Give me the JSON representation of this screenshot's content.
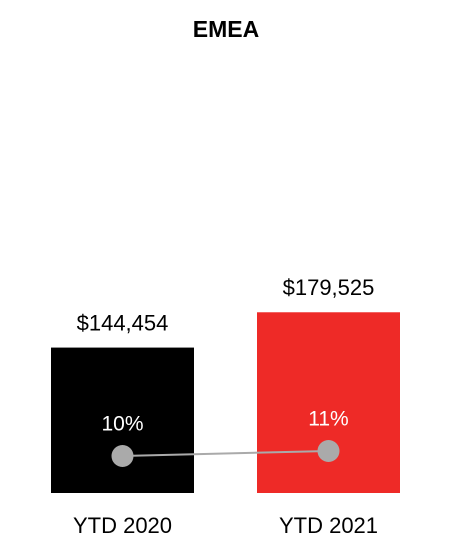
{
  "chart_data": {
    "type": "bar",
    "title": "EMEA",
    "categories": [
      "YTD 2020",
      "YTD 2021"
    ],
    "ylim": [
      0,
      450000
    ],
    "y2lim": [
      2.6,
      93.2
    ],
    "series": [
      {
        "type": "bar",
        "colors": [
          "#000000",
          "#ee2a27"
        ],
        "values": [
          144454,
          179525
        ],
        "value_labels": [
          "$144,454",
          "$179,525"
        ]
      },
      {
        "type": "line",
        "axis": "y2",
        "color": "#aaaaaa",
        "values": [
          10,
          11
        ],
        "value_labels": [
          "10%",
          "11%"
        ]
      }
    ]
  }
}
